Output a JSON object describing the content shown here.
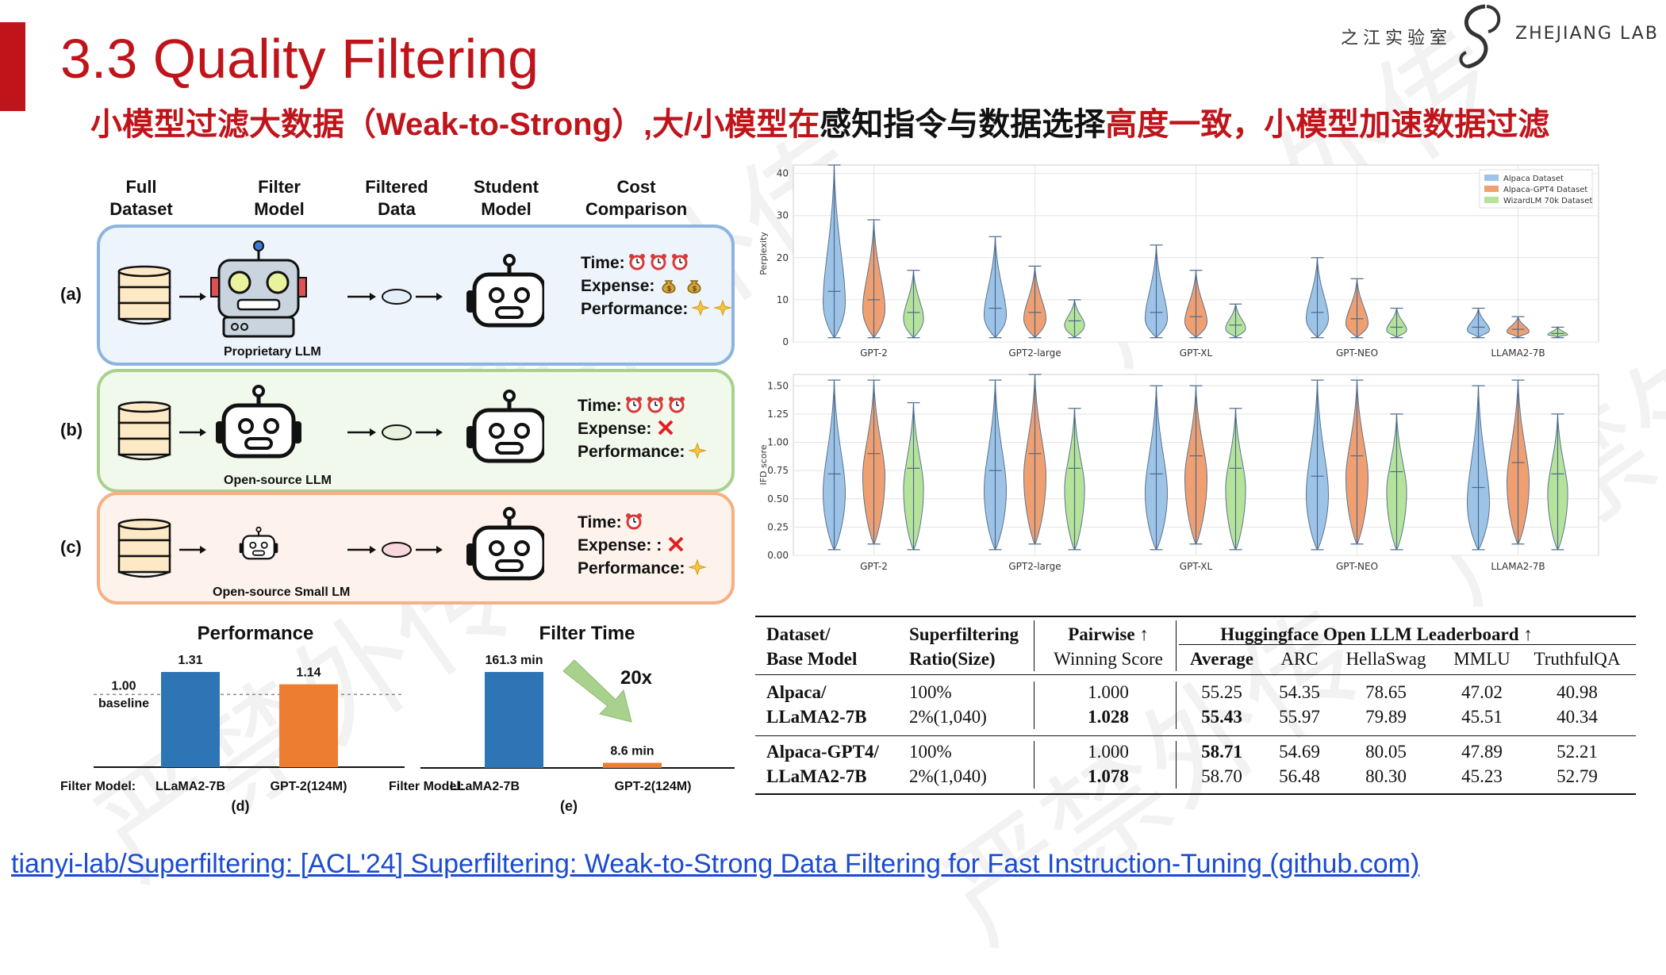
{
  "slide": {
    "title": "3.3 Quality Filtering",
    "subtitle_parts": [
      {
        "text": "小模型过滤大数据（Weak-to-Strong）,",
        "color": "red"
      },
      {
        "text": "大/小模型在",
        "color": "red"
      },
      {
        "text": "感知指令与数据选择",
        "color": "black"
      },
      {
        "text": "高度一致，小模型加速数据过滤",
        "color": "red"
      }
    ],
    "logo_cn": "之江实验室",
    "logo_en": "ZHEJIANG LAB",
    "watermark": "严禁外传",
    "link": "tianyi-lab/Superfiltering: [ACL'24] Superfiltering: Weak-to-Strong Data Filtering for Fast Instruction-Tuning (github.com)"
  },
  "pipeline": {
    "columns": [
      "Full\nDataset",
      "Filter\nModel",
      "Filtered\nData",
      "Student\nModel",
      "Cost\nComparison"
    ],
    "rows": [
      {
        "label": "(a)",
        "filter_name": "Proprietary LLM",
        "border": "#8db4de",
        "fill": "#edf4fb",
        "data_color": "#e3eef8",
        "time": "Time:",
        "time_icons": 3,
        "expense": "Expense:",
        "expense_icon": "money-bag-icon",
        "expense_count": 2,
        "performance": "Performance:",
        "perf_count": 2
      },
      {
        "label": "(b)",
        "filter_name": "Open-source LLM",
        "border": "#a7d28d",
        "fill": "#f1f8ec",
        "data_color": "#e6f2dc",
        "time": "Time:",
        "time_icons": 3,
        "expense": "Expense:",
        "expense_icon": "cross-icon",
        "expense_count": 1,
        "performance": "Performance:",
        "perf_count": 1
      },
      {
        "label": "(c)",
        "filter_name": "Open-source Small LM",
        "border": "#f4b183",
        "fill": "#fdf3ec",
        "data_color": "#f8d7dd",
        "time": "Time:",
        "time_icons": 1,
        "expense": "Expense: :",
        "expense_icon": "cross-icon",
        "expense_count": 1,
        "performance": "Performance:",
        "perf_count": 1
      }
    ]
  },
  "perf_chart": {
    "title": "Performance",
    "baseline_value": "1.00",
    "baseline_label": "baseline",
    "axis_prefix": "Filter Model:",
    "caption": "(d)",
    "bars": [
      {
        "category": "LLaMA2-7B",
        "value": 1.31,
        "label": "1.31",
        "color": "#2e75b6"
      },
      {
        "category": "GPT-2(124M)",
        "value": 1.14,
        "label": "1.14",
        "color": "#ed7d31"
      }
    ]
  },
  "time_chart": {
    "title": "Filter Time",
    "speedup": "20x",
    "axis_prefix": "Filter Model:",
    "caption": "(e)",
    "bars": [
      {
        "category": "LLaMA2-7B",
        "value": 161.3,
        "label": "161.3 min",
        "color": "#2e75b6"
      },
      {
        "category": "GPT-2(124M)",
        "value": 8.6,
        "label": "8.6 min",
        "color": "#ed7d31"
      }
    ]
  },
  "chart_data": [
    {
      "type": "violin",
      "ylabel": "Perplexity",
      "ylim": [
        0,
        42
      ],
      "yticks": [
        "0",
        "10",
        "20",
        "30",
        "40"
      ],
      "categories": [
        "GPT-2",
        "GPT2-large",
        "GPT-XL",
        "GPT-NEO",
        "LLAMA2-7B"
      ],
      "legend": [
        "Alpaca Dataset",
        "Alpaca-GPT4 Dataset",
        "WizardLM 70k Dataset"
      ],
      "legend_position": "top-right",
      "colors": [
        "#9dc3e6",
        "#f0a070",
        "#b6e39a"
      ],
      "series": [
        {
          "name": "Alpaca Dataset",
          "median": [
            12,
            8,
            7,
            7,
            3.5
          ],
          "max": [
            42,
            25,
            23,
            20,
            8
          ],
          "min": [
            1,
            1,
            1,
            1,
            1
          ]
        },
        {
          "name": "Alpaca-GPT4 Dataset",
          "median": [
            10,
            7,
            6,
            5.5,
            3
          ],
          "max": [
            29,
            18,
            17,
            15,
            6
          ],
          "min": [
            1,
            1,
            1,
            1,
            1
          ]
        },
        {
          "name": "WizardLM 70k Dataset",
          "median": [
            7,
            5,
            4,
            3.5,
            2
          ],
          "max": [
            17,
            10,
            9,
            8,
            3.5
          ],
          "min": [
            1,
            1,
            1,
            1,
            1
          ]
        }
      ],
      "grid": true
    },
    {
      "type": "violin",
      "ylabel": "IFD score",
      "ylim": [
        0,
        1.6
      ],
      "yticks": [
        "0.00",
        "0.25",
        "0.50",
        "0.75",
        "1.00",
        "1.25",
        "1.50"
      ],
      "categories": [
        "GPT-2",
        "GPT2-large",
        "GPT-XL",
        "GPT-NEO",
        "LLAMA2-7B"
      ],
      "colors": [
        "#9dc3e6",
        "#f0a070",
        "#b6e39a"
      ],
      "series": [
        {
          "name": "Alpaca Dataset",
          "median": [
            0.72,
            0.75,
            0.72,
            0.7,
            0.6
          ],
          "max": [
            1.55,
            1.55,
            1.5,
            1.55,
            1.5
          ],
          "min": [
            0.05,
            0.05,
            0.05,
            0.05,
            0.05
          ]
        },
        {
          "name": "Alpaca-GPT4 Dataset",
          "median": [
            0.9,
            0.9,
            0.88,
            0.88,
            0.82
          ],
          "max": [
            1.55,
            1.6,
            1.5,
            1.55,
            1.55
          ],
          "min": [
            0.1,
            0.1,
            0.1,
            0.1,
            0.1
          ]
        },
        {
          "name": "WizardLM 70k Dataset",
          "median": [
            0.77,
            0.77,
            0.77,
            0.74,
            0.72
          ],
          "max": [
            1.35,
            1.3,
            1.3,
            1.25,
            1.25
          ],
          "min": [
            0.05,
            0.05,
            0.05,
            0.05,
            0.05
          ]
        }
      ],
      "grid": true
    },
    {
      "type": "table",
      "headers": {
        "col1": [
          "Dataset/",
          "Base Model"
        ],
        "col2": [
          "Superfiltering",
          "Ratio(Size)"
        ],
        "col3": [
          "Pairwise ↑",
          "Winning Score"
        ],
        "group": "Huggingface Open LLM Leaderboard ↑",
        "sub": [
          "Average",
          "ARC",
          "HellaSwag",
          "MMLU",
          "TruthfulQA"
        ]
      },
      "groups": [
        {
          "name": [
            "Alpaca/",
            "LLaMA2-7B"
          ],
          "rows": [
            {
              "ratio": "100%",
              "win": "1.000",
              "win_bold": false,
              "avg": "55.25",
              "avg_bold": false,
              "arc": "54.35",
              "hella": "78.65",
              "mmlu": "47.02",
              "tqa": "40.98"
            },
            {
              "ratio": "2%(1,040)",
              "win": "1.028",
              "win_bold": true,
              "avg": "55.43",
              "avg_bold": true,
              "arc": "55.97",
              "hella": "79.89",
              "mmlu": "45.51",
              "tqa": "40.34"
            }
          ]
        },
        {
          "name": [
            "Alpaca-GPT4/",
            "LLaMA2-7B"
          ],
          "rows": [
            {
              "ratio": "100%",
              "win": "1.000",
              "win_bold": false,
              "avg": "58.71",
              "avg_bold": true,
              "arc": "54.69",
              "hella": "80.05",
              "mmlu": "47.89",
              "tqa": "52.21"
            },
            {
              "ratio": "2%(1,040)",
              "win": "1.078",
              "win_bold": true,
              "avg": "58.70",
              "avg_bold": false,
              "arc": "56.48",
              "hella": "80.30",
              "mmlu": "45.23",
              "tqa": "52.79"
            }
          ]
        }
      ]
    }
  ]
}
